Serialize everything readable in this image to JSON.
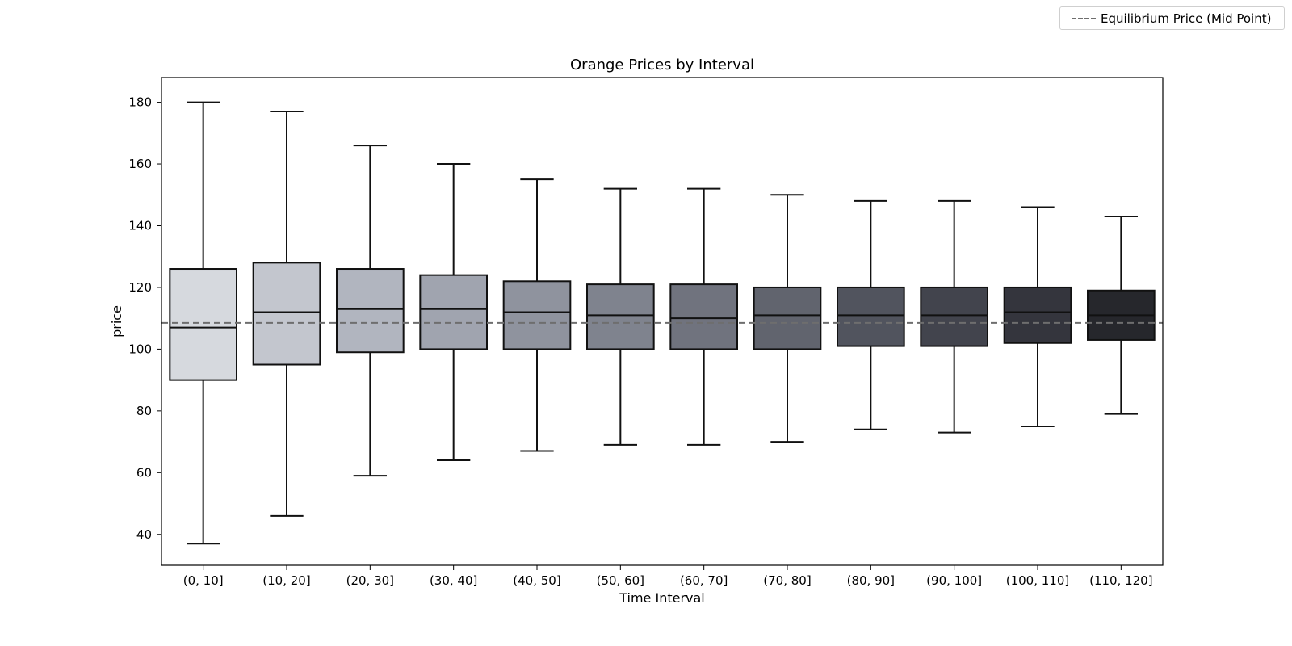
{
  "legend": {
    "label": "Equilibrium Price (Mid Point)",
    "position": "top-right"
  },
  "chart_data": {
    "type": "box",
    "title": "Orange Prices by Interval",
    "xlabel": "Time Interval",
    "ylabel": "price",
    "ylim": [
      30,
      188
    ],
    "yticks": [
      40,
      60,
      80,
      100,
      120,
      140,
      160,
      180
    ],
    "grid": false,
    "reference_line": {
      "label": "Equilibrium Price (Mid Point)",
      "value": 108.5,
      "style": "dashed",
      "color": "#6e6e6e"
    },
    "categories": [
      "(0, 10]",
      "(10, 20]",
      "(20, 30]",
      "(30, 40]",
      "(40, 50]",
      "(50, 60]",
      "(60, 70]",
      "(70, 80]",
      "(80, 90]",
      "(90, 100]",
      "(100, 110]",
      "(110, 120]"
    ],
    "boxes": [
      {
        "whisker_low": 37,
        "q1": 90,
        "median": 107,
        "q3": 126,
        "whisker_high": 180,
        "color": "#d6d9de"
      },
      {
        "whisker_low": 46,
        "q1": 95,
        "median": 112,
        "q3": 128,
        "whisker_high": 177,
        "color": "#c3c6ce"
      },
      {
        "whisker_low": 59,
        "q1": 99,
        "median": 113,
        "q3": 126,
        "whisker_high": 166,
        "color": "#b1b5bf"
      },
      {
        "whisker_low": 64,
        "q1": 100,
        "median": 113,
        "q3": 124,
        "whisker_high": 160,
        "color": "#a0a4af"
      },
      {
        "whisker_low": 67,
        "q1": 100,
        "median": 112,
        "q3": 122,
        "whisker_high": 155,
        "color": "#8f939e"
      },
      {
        "whisker_low": 69,
        "q1": 100,
        "median": 111,
        "q3": 121,
        "whisker_high": 152,
        "color": "#7f838e"
      },
      {
        "whisker_low": 69,
        "q1": 100,
        "median": 110,
        "q3": 121,
        "whisker_high": 152,
        "color": "#70737e"
      },
      {
        "whisker_low": 70,
        "q1": 100,
        "median": 111,
        "q3": 120,
        "whisker_high": 150,
        "color": "#61646e"
      },
      {
        "whisker_low": 74,
        "q1": 101,
        "median": 111,
        "q3": 120,
        "whisker_high": 148,
        "color": "#51545e"
      },
      {
        "whisker_low": 73,
        "q1": 101,
        "median": 111,
        "q3": 120,
        "whisker_high": 148,
        "color": "#42444d"
      },
      {
        "whisker_low": 75,
        "q1": 102,
        "median": 112,
        "q3": 120,
        "whisker_high": 146,
        "color": "#34353d"
      },
      {
        "whisker_low": 79,
        "q1": 103,
        "median": 111,
        "q3": 119,
        "whisker_high": 143,
        "color": "#26272c"
      }
    ]
  }
}
